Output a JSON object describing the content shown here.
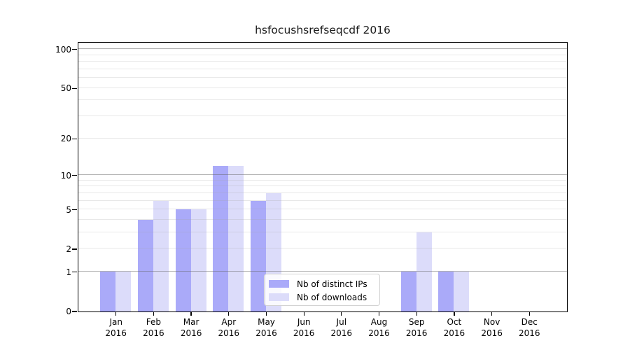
{
  "chart_data": {
    "type": "bar",
    "title": "hsfocushsrefseqcdf 2016",
    "categories": [
      "Jan",
      "Feb",
      "Mar",
      "Apr",
      "May",
      "Jun",
      "Jul",
      "Aug",
      "Sep",
      "Oct",
      "Nov",
      "Dec"
    ],
    "category_year": "2016",
    "series": [
      {
        "key": "distinct-ips",
        "name": "Nb of distinct IPs",
        "color": "#aaaaf9",
        "values": [
          1,
          4,
          5,
          12,
          6,
          0,
          0,
          0,
          1,
          1,
          0,
          0
        ]
      },
      {
        "key": "downloads",
        "name": "Nb of downloads",
        "color": "#dcdcfa",
        "values": [
          1,
          6,
          5,
          12,
          7,
          0,
          0,
          0,
          3,
          1,
          0,
          0
        ]
      }
    ],
    "yscale": "log10(1+value)",
    "ylim": [
      0,
      113
    ],
    "yticks": [
      0,
      1,
      2,
      5,
      10,
      20,
      50,
      100
    ],
    "major_gridlines": [
      1,
      10,
      100
    ],
    "minor_gridlines": [
      2,
      3,
      4,
      5,
      6,
      7,
      8,
      9,
      20,
      30,
      40,
      50,
      60,
      70,
      80,
      90
    ],
    "grid": "horizontal",
    "legend_position": "lower-center"
  },
  "colors": {
    "major_grid": "rgba(97,97,97,0.5)",
    "minor_grid": "rgba(163,163,163,0.25)",
    "spine": "#000000",
    "text": "#000000"
  }
}
